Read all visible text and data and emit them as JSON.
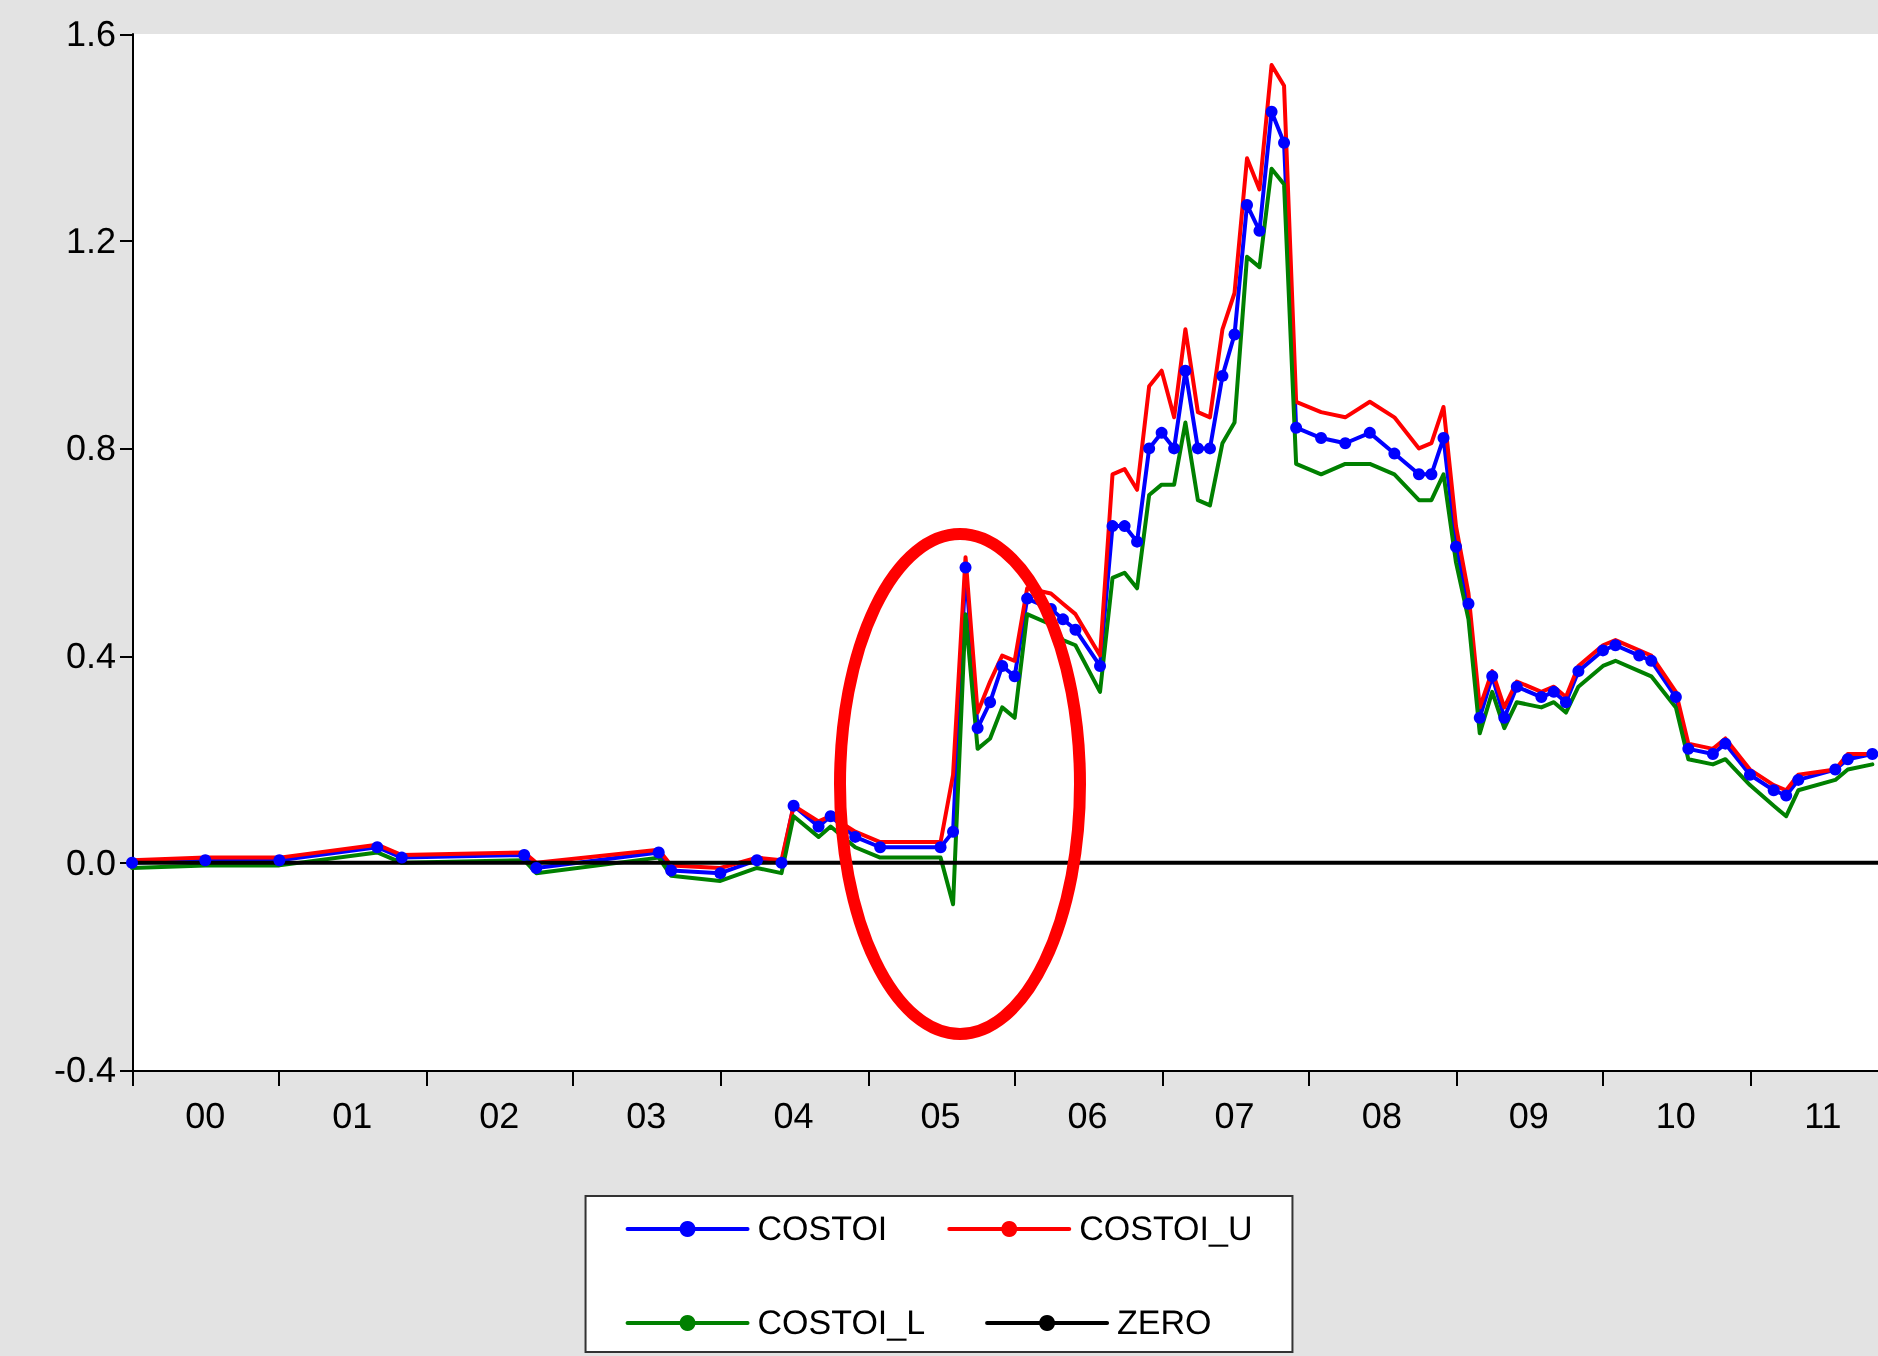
{
  "chart_data": {
    "type": "line",
    "x": [
      "2000-01",
      "2000-07",
      "2001-01",
      "2001-09",
      "2001-11",
      "2002-09",
      "2002-10",
      "2003-08",
      "2003-09",
      "2004-01",
      "2004-04",
      "2004-06",
      "2004-07",
      "2004-09",
      "2004-10",
      "2004-12",
      "2005-02",
      "2005-07",
      "2005-08",
      "2005-09",
      "2005-10",
      "2005-11",
      "2005-12",
      "2006-01",
      "2006-02",
      "2006-04",
      "2006-05",
      "2006-06",
      "2006-08",
      "2006-09",
      "2006-10",
      "2006-11",
      "2006-12",
      "2007-01",
      "2007-02",
      "2007-03",
      "2007-04",
      "2007-05",
      "2007-06",
      "2007-07",
      "2007-08",
      "2007-09",
      "2007-10",
      "2007-11",
      "2007-12",
      "2008-02",
      "2008-04",
      "2008-06",
      "2008-08",
      "2008-10",
      "2008-11",
      "2008-12",
      "2009-01",
      "2009-02",
      "2009-03",
      "2009-04",
      "2009-05",
      "2009-06",
      "2009-08",
      "2009-09",
      "2009-10",
      "2009-11",
      "2010-01",
      "2010-02",
      "2010-04",
      "2010-05",
      "2010-07",
      "2010-08",
      "2010-10",
      "2010-11",
      "2011-01",
      "2011-03",
      "2011-04",
      "2011-05",
      "2011-08",
      "2011-09",
      "2011-11"
    ],
    "series": [
      {
        "name": "COSTOI",
        "color": "#0000ff",
        "marker": "circle",
        "values": [
          0,
          0.005,
          0.005,
          0.03,
          0.01,
          0.015,
          -0.01,
          0.02,
          -0.015,
          -0.02,
          0.005,
          0.0,
          0.11,
          0.07,
          0.09,
          0.05,
          0.03,
          0.03,
          0.06,
          0.57,
          0.26,
          0.31,
          0.38,
          0.36,
          0.51,
          0.49,
          0.47,
          0.45,
          0.38,
          0.65,
          0.65,
          0.62,
          0.8,
          0.83,
          0.8,
          0.95,
          0.8,
          0.8,
          0.94,
          1.02,
          1.27,
          1.22,
          1.45,
          1.39,
          0.84,
          0.82,
          0.81,
          0.83,
          0.79,
          0.75,
          0.75,
          0.82,
          0.61,
          0.5,
          0.28,
          0.36,
          0.28,
          0.34,
          0.32,
          0.33,
          0.31,
          0.37,
          0.41,
          0.42,
          0.4,
          0.39,
          0.32,
          0.22,
          0.21,
          0.23,
          0.17,
          0.14,
          0.13,
          0.16,
          0.18,
          0.2,
          0.21
        ]
      },
      {
        "name": "COSTOI_U",
        "color": "#ff0000",
        "values": [
          0.005,
          0.01,
          0.01,
          0.035,
          0.015,
          0.02,
          0.0,
          0.025,
          -0.005,
          -0.01,
          0.01,
          0.005,
          0.11,
          0.08,
          0.09,
          0.06,
          0.04,
          0.04,
          0.17,
          0.59,
          0.29,
          0.35,
          0.4,
          0.39,
          0.53,
          0.52,
          0.5,
          0.48,
          0.4,
          0.75,
          0.76,
          0.72,
          0.92,
          0.95,
          0.86,
          1.03,
          0.87,
          0.86,
          1.03,
          1.1,
          1.36,
          1.3,
          1.54,
          1.5,
          0.89,
          0.87,
          0.86,
          0.89,
          0.86,
          0.8,
          0.81,
          0.88,
          0.65,
          0.52,
          0.3,
          0.37,
          0.3,
          0.35,
          0.33,
          0.34,
          0.32,
          0.38,
          0.42,
          0.43,
          0.41,
          0.4,
          0.33,
          0.23,
          0.22,
          0.24,
          0.18,
          0.15,
          0.14,
          0.17,
          0.18,
          0.21,
          0.21
        ]
      },
      {
        "name": "COSTOI_L",
        "color": "#008000",
        "values": [
          -0.01,
          -0.005,
          -0.005,
          0.02,
          0.0,
          0.005,
          -0.02,
          0.01,
          -0.025,
          -0.035,
          -0.01,
          -0.02,
          0.09,
          0.05,
          0.07,
          0.03,
          0.01,
          0.01,
          -0.08,
          0.48,
          0.22,
          0.24,
          0.3,
          0.28,
          0.48,
          0.46,
          0.43,
          0.42,
          0.33,
          0.55,
          0.56,
          0.53,
          0.71,
          0.73,
          0.73,
          0.85,
          0.7,
          0.69,
          0.81,
          0.85,
          1.17,
          1.15,
          1.34,
          1.31,
          0.77,
          0.75,
          0.77,
          0.77,
          0.75,
          0.7,
          0.7,
          0.75,
          0.58,
          0.47,
          0.25,
          0.33,
          0.26,
          0.31,
          0.3,
          0.31,
          0.29,
          0.34,
          0.38,
          0.39,
          0.37,
          0.36,
          0.3,
          0.2,
          0.19,
          0.2,
          0.15,
          0.11,
          0.09,
          0.14,
          0.16,
          0.18,
          0.19
        ]
      },
      {
        "name": "ZERO",
        "color": "#000000",
        "x": [
          "2000-01",
          "2011-11-15"
        ],
        "values": [
          0,
          0
        ]
      }
    ],
    "xlim": [
      "2000-01",
      "2011-11-15"
    ],
    "xticks": [
      {
        "value": "2000-01",
        "label": null
      },
      {
        "value": "2000-07",
        "label": "00"
      },
      {
        "value": "2001-01",
        "label": null
      },
      {
        "value": "2001-07",
        "label": "01"
      },
      {
        "value": "2002-01",
        "label": null
      },
      {
        "value": "2002-07",
        "label": "02"
      },
      {
        "value": "2003-01",
        "label": null
      },
      {
        "value": "2003-07",
        "label": "03"
      },
      {
        "value": "2004-01",
        "label": null
      },
      {
        "value": "2004-07",
        "label": "04"
      },
      {
        "value": "2005-01",
        "label": null
      },
      {
        "value": "2005-07",
        "label": "05"
      },
      {
        "value": "2006-01",
        "label": null
      },
      {
        "value": "2006-07",
        "label": "06"
      },
      {
        "value": "2007-01",
        "label": null
      },
      {
        "value": "2007-07",
        "label": "07"
      },
      {
        "value": "2008-01",
        "label": null
      },
      {
        "value": "2008-07",
        "label": "08"
      },
      {
        "value": "2009-01",
        "label": null
      },
      {
        "value": "2009-07",
        "label": "09"
      },
      {
        "value": "2010-01",
        "label": null
      },
      {
        "value": "2010-07",
        "label": "10"
      },
      {
        "value": "2011-01",
        "label": null
      },
      {
        "value": "2011-07",
        "label": "11"
      }
    ],
    "ylim": [
      -0.4,
      1.6
    ],
    "yticks": [
      -0.4,
      {
        "value": 0,
        "label": "0.0"
      },
      0.4,
      0.8,
      1.2,
      1.6
    ],
    "grid": false,
    "legend": "bottom",
    "marker": "none",
    "line_style": "solid"
  }
}
